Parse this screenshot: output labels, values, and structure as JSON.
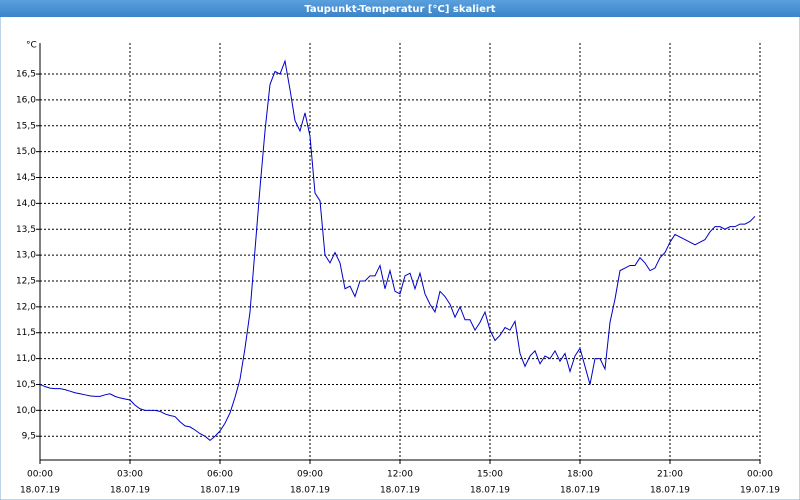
{
  "chart_data": {
    "type": "line",
    "title": "Taupunkt-Temperatur [°C] skaliert",
    "y_label": "°C",
    "x": [
      0,
      10,
      20,
      30,
      40,
      50,
      60,
      70,
      80,
      90,
      100,
      110,
      120,
      130,
      140,
      150,
      160,
      170,
      180,
      190,
      200,
      210,
      220,
      230,
      240,
      250,
      260,
      270,
      280,
      290,
      300,
      310,
      320,
      330,
      340,
      350,
      360,
      370,
      380,
      390,
      400,
      410,
      420,
      430,
      440,
      450,
      460,
      470,
      480,
      490,
      500,
      510,
      520,
      530,
      540,
      550,
      560,
      570,
      580,
      590,
      600,
      610,
      620,
      630,
      640,
      650,
      660,
      670,
      680,
      690,
      700,
      710,
      720,
      730,
      740,
      750,
      760,
      770,
      780,
      790,
      800,
      810,
      820,
      830,
      840,
      850,
      860,
      870,
      880,
      890,
      900,
      910,
      920,
      930,
      940,
      950,
      960,
      970,
      980,
      990,
      1000,
      1010,
      1020,
      1030,
      1040,
      1050,
      1060,
      1070,
      1080,
      1090,
      1100,
      1110,
      1120,
      1130,
      1140,
      1150,
      1160,
      1170,
      1180,
      1190,
      1200,
      1210,
      1220,
      1230,
      1240,
      1250,
      1260,
      1270,
      1280,
      1290,
      1300,
      1310,
      1320,
      1330,
      1340,
      1350,
      1360,
      1370,
      1380,
      1390,
      1400,
      1410,
      1420,
      1430
    ],
    "series": [
      {
        "name": "Taupunkt-Temperatur",
        "color": "#0000c8",
        "values": [
          10.5,
          10.46,
          10.43,
          10.42,
          10.42,
          10.4,
          10.37,
          10.34,
          10.32,
          10.3,
          10.28,
          10.27,
          10.27,
          10.3,
          10.32,
          10.27,
          10.24,
          10.22,
          10.2,
          10.1,
          10.03,
          10.0,
          10.0,
          10.0,
          9.98,
          9.93,
          9.9,
          9.88,
          9.78,
          9.7,
          9.68,
          9.62,
          9.55,
          9.5,
          9.42,
          9.5,
          9.6,
          9.75,
          9.95,
          10.25,
          10.6,
          11.2,
          11.9,
          13.1,
          14.3,
          15.4,
          16.3,
          16.55,
          16.5,
          16.75,
          16.2,
          15.6,
          15.4,
          15.75,
          15.3,
          14.2,
          14.05,
          13.0,
          12.85,
          13.05,
          12.85,
          12.35,
          12.4,
          12.2,
          12.5,
          12.5,
          12.6,
          12.6,
          12.8,
          12.35,
          12.7,
          12.3,
          12.25,
          12.6,
          12.65,
          12.35,
          12.65,
          12.25,
          12.05,
          11.9,
          12.3,
          12.2,
          12.05,
          11.8,
          12.0,
          11.75,
          11.75,
          11.55,
          11.7,
          11.9,
          11.55,
          11.35,
          11.45,
          11.6,
          11.55,
          11.72,
          11.1,
          10.85,
          11.05,
          11.15,
          10.9,
          11.05,
          11.0,
          11.15,
          10.95,
          11.1,
          10.75,
          11.05,
          11.2,
          10.85,
          10.5,
          11.0,
          11.0,
          10.8,
          11.7,
          12.15,
          12.7,
          12.75,
          12.8,
          12.8,
          12.95,
          12.85,
          12.7,
          12.75,
          12.95,
          13.05,
          13.25,
          13.4,
          13.35,
          13.3,
          13.25,
          13.2,
          13.25,
          13.3,
          13.45,
          13.55,
          13.55,
          13.5,
          13.55,
          13.55,
          13.6,
          13.6,
          13.65,
          13.75
        ]
      }
    ],
    "xlim": [
      0,
      1440
    ],
    "xticks": [
      {
        "value": 0,
        "label": "00:00",
        "date": "18.07.19"
      },
      {
        "value": 180,
        "label": "03:00",
        "date": "18.07.19"
      },
      {
        "value": 360,
        "label": "06:00",
        "date": "18.07.19"
      },
      {
        "value": 540,
        "label": "09:00",
        "date": "18.07.19"
      },
      {
        "value": 720,
        "label": "12:00",
        "date": "18.07.19"
      },
      {
        "value": 900,
        "label": "15:00",
        "date": "18.07.19"
      },
      {
        "value": 1080,
        "label": "18:00",
        "date": "18.07.19"
      },
      {
        "value": 1260,
        "label": "21:00",
        "date": "18.07.19"
      },
      {
        "value": 1440,
        "label": "00:00",
        "date": "19.07.19"
      }
    ],
    "ylim": [
      9.04,
      17.1
    ],
    "yticks": [
      {
        "value": 9.5,
        "label": "9,5"
      },
      {
        "value": 10,
        "label": "10,0"
      },
      {
        "value": 10.5,
        "label": "10,5"
      },
      {
        "value": 11,
        "label": "11,0"
      },
      {
        "value": 11.5,
        "label": "11,5"
      },
      {
        "value": 12,
        "label": "12,0"
      },
      {
        "value": 12.5,
        "label": "12,5"
      },
      {
        "value": 13,
        "label": "13,0"
      },
      {
        "value": 13.5,
        "label": "13,5"
      },
      {
        "value": 14,
        "label": "14,0"
      },
      {
        "value": 14.5,
        "label": "14,5"
      },
      {
        "value": 15,
        "label": "15,0"
      },
      {
        "value": 15.5,
        "label": "15,5"
      },
      {
        "value": 16,
        "label": "16,0"
      },
      {
        "value": 16.5,
        "label": "16,5"
      }
    ],
    "grid": true
  }
}
